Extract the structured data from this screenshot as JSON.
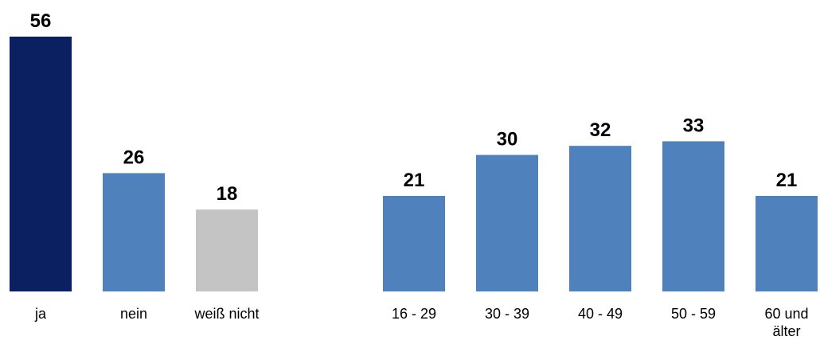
{
  "chart_data": [
    {
      "type": "bar",
      "categories": [
        "ja",
        "nein",
        "weiß nicht"
      ],
      "values": [
        56,
        26,
        18
      ],
      "colors": [
        "#0a2060",
        "#4f81bd",
        "#c4c4c4"
      ],
      "ylim": [
        0,
        56
      ],
      "grid": false
    },
    {
      "type": "bar",
      "categories": [
        "16 - 29",
        "30 - 39",
        "40 - 49",
        "50 - 59",
        "60 und älter"
      ],
      "values": [
        21,
        30,
        32,
        33,
        21
      ],
      "colors": [
        "#4f81bd",
        "#4f81bd",
        "#4f81bd",
        "#4f81bd",
        "#4f81bd"
      ],
      "ylim": [
        0,
        56
      ],
      "grid": false
    }
  ]
}
